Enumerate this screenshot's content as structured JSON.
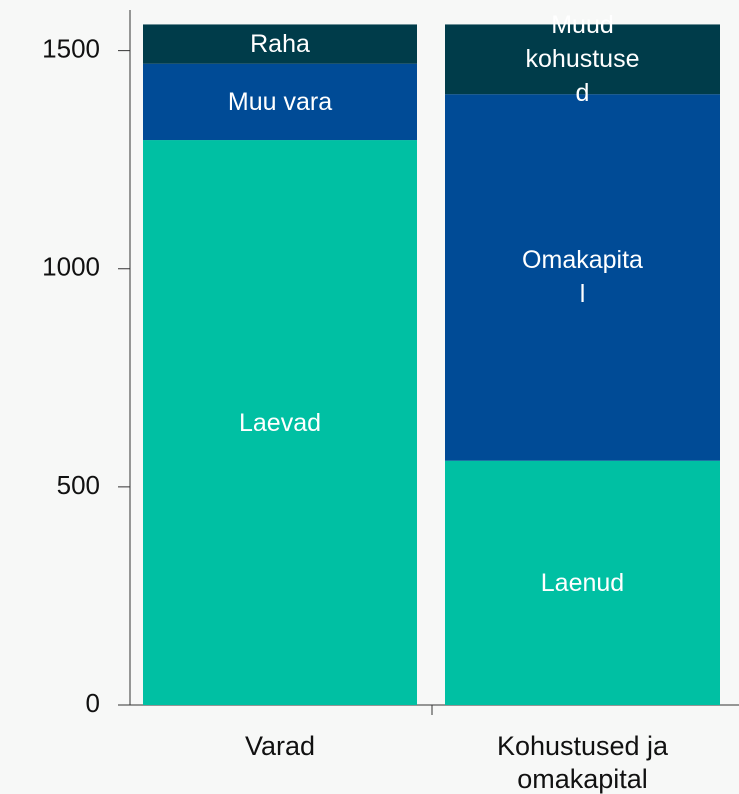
{
  "chart_data": {
    "type": "stacked_bar",
    "categories": [
      "Varad",
      "Kohustused ja omakapital"
    ],
    "series": [
      {
        "name": "Laevad",
        "color": "#00c0a3",
        "values": [
          1295,
          null
        ]
      },
      {
        "name": "Muu vara",
        "color": "#004b96",
        "values": [
          175,
          null
        ]
      },
      {
        "name": "Raha",
        "color": "#003c4a",
        "values": [
          90,
          null
        ]
      },
      {
        "name": "Laenud",
        "color": "#00c0a3",
        "values": [
          null,
          560
        ]
      },
      {
        "name": "Omakapital",
        "color": "#004b96",
        "values": [
          null,
          840
        ]
      },
      {
        "name": "Muud kohustused",
        "color": "#003c4a",
        "values": [
          null,
          160
        ]
      }
    ],
    "ylim": [
      0,
      1600
    ],
    "yticks": [
      0,
      500,
      1000,
      1500
    ]
  }
}
